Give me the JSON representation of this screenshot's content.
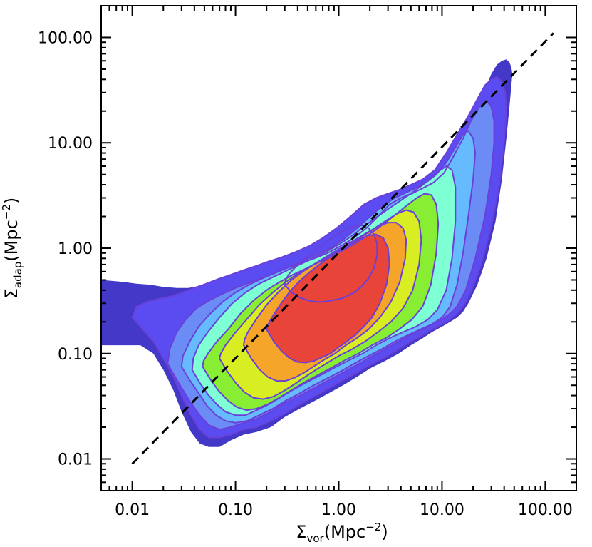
{
  "chart_data": {
    "type": "contour",
    "x_scale": "log",
    "y_scale": "log",
    "xlim": [
      0.005,
      200
    ],
    "ylim": [
      0.005,
      200
    ],
    "x_ticks": [
      0.01,
      0.1,
      1,
      10,
      100
    ],
    "x_tick_labels": [
      "0.01",
      "0.10",
      "1.00",
      "10.00",
      "100.00"
    ],
    "y_ticks": [
      0.01,
      0.1,
      1,
      10,
      100
    ],
    "y_tick_labels": [
      "0.01",
      "0.10",
      "1.00",
      "10.00",
      "100.00"
    ],
    "xlabel": {
      "symbol": "Σ",
      "subscript": "vor",
      "unit": "(Mpc",
      "exponent": "−2",
      "close": ")"
    },
    "ylabel": {
      "symbol": "Σ",
      "subscript": "adap",
      "unit": "(Mpc",
      "exponent": "−2",
      "close": ")"
    },
    "reference_line": {
      "style": "dashed",
      "color": "#000000",
      "x": [
        0.01,
        120
      ],
      "y": [
        0.009,
        110
      ]
    },
    "levels": [
      {
        "color": "#4338c8",
        "x": [
          0.005,
          0.008,
          0.012,
          0.016,
          0.02,
          0.025,
          0.03,
          0.037,
          0.045,
          0.055,
          0.07,
          0.09,
          0.12,
          0.16,
          0.22,
          0.3,
          0.42,
          0.6,
          0.8,
          1.1,
          1.5,
          2.0,
          2.8,
          3.8,
          5.0,
          6.5,
          8.0,
          10.0,
          12.0,
          14.0,
          16.0,
          18.0,
          22.0,
          27.0,
          33.0,
          38.0,
          42.0,
          45.0,
          47.0,
          48.0,
          47.0,
          45.0,
          42.0,
          38.0,
          34.0,
          30.0,
          27.0,
          24.0,
          20.0,
          17.0,
          14.0,
          11.0,
          9.0,
          7.0,
          5.5,
          4.2,
          3.3,
          2.6,
          2.0,
          1.5,
          1.1,
          0.8,
          0.6,
          0.45,
          0.34,
          0.26,
          0.2,
          0.15,
          0.11,
          0.08,
          0.06,
          0.045,
          0.035,
          0.027,
          0.02,
          0.015,
          0.011,
          0.008,
          0.005
        ],
        "y": [
          0.12,
          0.12,
          0.12,
          0.1,
          0.07,
          0.045,
          0.028,
          0.018,
          0.014,
          0.013,
          0.013,
          0.015,
          0.017,
          0.018,
          0.02,
          0.025,
          0.03,
          0.036,
          0.042,
          0.05,
          0.06,
          0.072,
          0.085,
          0.1,
          0.12,
          0.14,
          0.16,
          0.18,
          0.2,
          0.22,
          0.25,
          0.3,
          0.45,
          0.8,
          1.8,
          4.5,
          11.0,
          22.0,
          35.0,
          45.0,
          52.0,
          58.0,
          62.0,
          60.0,
          55.0,
          45.0,
          35.0,
          25.0,
          17.0,
          12.0,
          8.0,
          5.5,
          4.5,
          4.0,
          3.7,
          3.5,
          3.3,
          3.0,
          2.6,
          2.0,
          1.6,
          1.25,
          1.05,
          0.9,
          0.8,
          0.75,
          0.7,
          0.65,
          0.58,
          0.52,
          0.47,
          0.44,
          0.42,
          0.42,
          0.43,
          0.45,
          0.46,
          0.48,
          0.5
        ]
      },
      {
        "color": "#5a4cf0",
        "x": [
          0.01,
          0.012,
          0.016,
          0.02,
          0.025,
          0.03,
          0.037,
          0.045,
          0.055,
          0.07,
          0.09,
          0.12,
          0.16,
          0.22,
          0.3,
          0.42,
          0.6,
          0.8,
          1.1,
          1.5,
          2.0,
          2.8,
          3.8,
          5.0,
          6.5,
          8.0,
          10.0,
          12.0,
          14.0,
          16.0,
          19.0,
          24.0,
          30.0,
          36.0,
          40.0,
          42.0,
          41.0,
          38.0,
          34.0,
          30.0,
          26.0,
          22.0,
          18.0,
          14.0,
          11.0,
          8.5,
          6.5,
          5.0,
          3.9,
          3.0,
          2.3,
          1.75,
          1.3,
          0.95,
          0.7,
          0.52,
          0.38,
          0.28,
          0.21,
          0.16,
          0.12,
          0.09,
          0.068,
          0.052,
          0.04,
          0.031,
          0.024,
          0.018,
          0.014,
          0.011,
          0.01
        ],
        "y": [
          0.22,
          0.18,
          0.13,
          0.09,
          0.06,
          0.04,
          0.026,
          0.019,
          0.016,
          0.016,
          0.017,
          0.019,
          0.02,
          0.023,
          0.027,
          0.033,
          0.04,
          0.047,
          0.056,
          0.066,
          0.078,
          0.092,
          0.11,
          0.13,
          0.15,
          0.17,
          0.19,
          0.21,
          0.24,
          0.28,
          0.38,
          0.7,
          1.6,
          4.0,
          10.0,
          20.0,
          30.0,
          38.0,
          42.0,
          40.0,
          35.0,
          26.0,
          18.0,
          12.0,
          8.0,
          5.5,
          4.5,
          4.0,
          3.6,
          3.3,
          3.0,
          2.6,
          2.0,
          1.55,
          1.25,
          1.05,
          0.92,
          0.82,
          0.75,
          0.68,
          0.62,
          0.56,
          0.51,
          0.46,
          0.42,
          0.38,
          0.35,
          0.33,
          0.31,
          0.28,
          0.22
        ]
      },
      {
        "color": "#6b8cf4",
        "x": [
          0.022,
          0.026,
          0.031,
          0.037,
          0.045,
          0.055,
          0.07,
          0.09,
          0.12,
          0.16,
          0.22,
          0.3,
          0.42,
          0.6,
          0.8,
          1.1,
          1.5,
          2.0,
          2.8,
          3.8,
          5.0,
          6.5,
          8.0,
          10.0,
          12.0,
          14.0,
          17.0,
          21.0,
          26.0,
          30.0,
          32.0,
          32.0,
          30.0,
          27.0,
          23.0,
          19.0,
          16.0,
          13.0,
          10.5,
          8.3,
          6.5,
          5.1,
          4.0,
          3.1,
          2.4,
          1.85,
          1.4,
          1.05,
          0.78,
          0.58,
          0.43,
          0.32,
          0.24,
          0.18,
          0.135,
          0.1,
          0.075,
          0.056,
          0.042,
          0.033,
          0.027,
          0.023,
          0.022
        ],
        "y": [
          0.08,
          0.06,
          0.045,
          0.034,
          0.026,
          0.021,
          0.019,
          0.02,
          0.022,
          0.024,
          0.028,
          0.034,
          0.04,
          0.048,
          0.056,
          0.066,
          0.078,
          0.092,
          0.11,
          0.13,
          0.15,
          0.17,
          0.19,
          0.21,
          0.24,
          0.28,
          0.4,
          0.8,
          2.0,
          5.0,
          10.0,
          16.0,
          22.0,
          25.0,
          22.0,
          16.0,
          11.0,
          7.5,
          5.2,
          4.2,
          3.7,
          3.3,
          3.0,
          2.6,
          2.0,
          1.55,
          1.25,
          1.05,
          0.9,
          0.8,
          0.72,
          0.65,
          0.58,
          0.52,
          0.47,
          0.42,
          0.37,
          0.32,
          0.27,
          0.21,
          0.16,
          0.11,
          0.08
        ]
      },
      {
        "color": "#66bbff",
        "x": [
          0.03,
          0.036,
          0.044,
          0.053,
          0.065,
          0.08,
          0.1,
          0.13,
          0.17,
          0.23,
          0.31,
          0.42,
          0.57,
          0.77,
          1.05,
          1.4,
          1.9,
          2.6,
          3.5,
          4.7,
          6.2,
          8.0,
          10.0,
          12.0,
          14.0,
          16.0,
          18.0,
          20.0,
          21.0,
          20.0,
          18.0,
          16.0,
          13.5,
          11.0,
          8.8,
          7.0,
          5.5,
          4.3,
          3.3,
          2.5,
          1.9,
          1.45,
          1.1,
          0.83,
          0.62,
          0.46,
          0.34,
          0.25,
          0.185,
          0.135,
          0.1,
          0.075,
          0.057,
          0.044,
          0.036,
          0.031,
          0.03
        ],
        "y": [
          0.075,
          0.056,
          0.042,
          0.032,
          0.026,
          0.023,
          0.022,
          0.023,
          0.026,
          0.03,
          0.036,
          0.042,
          0.05,
          0.058,
          0.068,
          0.08,
          0.094,
          0.11,
          0.13,
          0.15,
          0.17,
          0.19,
          0.22,
          0.28,
          0.45,
          0.9,
          2.0,
          4.5,
          8.0,
          11.0,
          13.0,
          12.0,
          9.0,
          6.5,
          5.0,
          4.2,
          3.7,
          3.3,
          2.9,
          2.4,
          1.9,
          1.5,
          1.2,
          1.0,
          0.87,
          0.76,
          0.67,
          0.59,
          0.52,
          0.45,
          0.38,
          0.31,
          0.24,
          0.18,
          0.13,
          0.095,
          0.075
        ]
      },
      {
        "color": "#7fffd4",
        "x": [
          0.038,
          0.045,
          0.054,
          0.066,
          0.08,
          0.1,
          0.125,
          0.16,
          0.21,
          0.28,
          0.37,
          0.5,
          0.68,
          0.92,
          1.25,
          1.7,
          2.3,
          3.1,
          4.2,
          5.6,
          7.3,
          9.0,
          11.0,
          12.5,
          13.5,
          13.5,
          12.5,
          11.0,
          9.4,
          7.8,
          6.3,
          5.0,
          3.9,
          3.0,
          2.3,
          1.75,
          1.33,
          1.0,
          0.75,
          0.56,
          0.42,
          0.31,
          0.23,
          0.17,
          0.125,
          0.093,
          0.07,
          0.054,
          0.044,
          0.039,
          0.038
        ],
        "y": [
          0.07,
          0.053,
          0.041,
          0.033,
          0.028,
          0.026,
          0.026,
          0.029,
          0.033,
          0.039,
          0.046,
          0.054,
          0.063,
          0.074,
          0.086,
          0.1,
          0.12,
          0.14,
          0.16,
          0.18,
          0.21,
          0.26,
          0.4,
          0.8,
          1.8,
          3.8,
          5.5,
          6.0,
          5.4,
          4.6,
          3.9,
          3.3,
          2.8,
          2.35,
          1.95,
          1.6,
          1.3,
          1.08,
          0.92,
          0.8,
          0.7,
          0.61,
          0.53,
          0.46,
          0.38,
          0.3,
          0.22,
          0.16,
          0.12,
          0.09,
          0.07
        ]
      },
      {
        "color": "#88ee33",
        "x": [
          0.048,
          0.057,
          0.069,
          0.084,
          0.103,
          0.128,
          0.16,
          0.205,
          0.265,
          0.35,
          0.46,
          0.62,
          0.84,
          1.14,
          1.55,
          2.1,
          2.85,
          3.85,
          5.1,
          6.5,
          7.8,
          8.8,
          9.2,
          8.8,
          7.9,
          6.8,
          5.7,
          4.7,
          3.8,
          3.05,
          2.4,
          1.85,
          1.42,
          1.09,
          0.83,
          0.63,
          0.48,
          0.36,
          0.27,
          0.2,
          0.15,
          0.112,
          0.085,
          0.066,
          0.054,
          0.049,
          0.048
        ],
        "y": [
          0.075,
          0.057,
          0.044,
          0.036,
          0.031,
          0.029,
          0.03,
          0.033,
          0.038,
          0.045,
          0.053,
          0.062,
          0.073,
          0.086,
          0.1,
          0.12,
          0.14,
          0.17,
          0.21,
          0.28,
          0.45,
          0.9,
          1.7,
          2.6,
          3.2,
          3.3,
          3.0,
          2.6,
          2.2,
          1.85,
          1.55,
          1.3,
          1.1,
          0.95,
          0.83,
          0.73,
          0.64,
          0.56,
          0.48,
          0.4,
          0.32,
          0.24,
          0.17,
          0.13,
          0.1,
          0.085,
          0.075
        ]
      },
      {
        "color": "#d8ee22",
        "x": [
          0.07,
          0.083,
          0.1,
          0.122,
          0.15,
          0.186,
          0.232,
          0.292,
          0.37,
          0.47,
          0.6,
          0.78,
          1.02,
          1.35,
          1.8,
          2.4,
          3.2,
          4.2,
          5.2,
          6.0,
          6.3,
          6.0,
          5.3,
          4.5,
          3.75,
          3.05,
          2.45,
          1.95,
          1.53,
          1.19,
          0.92,
          0.71,
          0.54,
          0.41,
          0.31,
          0.23,
          0.17,
          0.128,
          0.098,
          0.08,
          0.072,
          0.07
        ],
        "y": [
          0.09,
          0.068,
          0.053,
          0.043,
          0.038,
          0.037,
          0.039,
          0.044,
          0.051,
          0.06,
          0.07,
          0.082,
          0.096,
          0.11,
          0.13,
          0.16,
          0.2,
          0.27,
          0.4,
          0.7,
          1.2,
          1.8,
          2.2,
          2.3,
          2.15,
          1.9,
          1.65,
          1.42,
          1.22,
          1.05,
          0.91,
          0.79,
          0.68,
          0.58,
          0.48,
          0.38,
          0.29,
          0.21,
          0.155,
          0.12,
          0.1,
          0.09
        ]
      },
      {
        "color": "#f5a52a",
        "x": [
          0.12,
          0.142,
          0.17,
          0.205,
          0.25,
          0.305,
          0.375,
          0.465,
          0.58,
          0.73,
          0.92,
          1.17,
          1.5,
          1.95,
          2.5,
          3.2,
          3.9,
          4.4,
          4.5,
          4.2,
          3.6,
          3.0,
          2.45,
          1.98,
          1.58,
          1.25,
          0.98,
          0.77,
          0.6,
          0.46,
          0.35,
          0.265,
          0.2,
          0.158,
          0.132,
          0.122,
          0.12
        ],
        "y": [
          0.12,
          0.09,
          0.071,
          0.06,
          0.055,
          0.055,
          0.059,
          0.066,
          0.076,
          0.088,
          0.1,
          0.12,
          0.14,
          0.17,
          0.22,
          0.31,
          0.48,
          0.8,
          1.2,
          1.55,
          1.75,
          1.75,
          1.62,
          1.45,
          1.27,
          1.11,
          0.97,
          0.84,
          0.72,
          0.61,
          0.5,
          0.39,
          0.29,
          0.21,
          0.16,
          0.135,
          0.12
        ]
      },
      {
        "color": "#e8443a",
        "x": [
          0.2,
          0.235,
          0.28,
          0.335,
          0.4,
          0.48,
          0.575,
          0.69,
          0.83,
          1.0,
          1.2,
          1.45,
          1.75,
          2.1,
          2.5,
          2.9,
          3.1,
          3.0,
          2.7,
          2.3,
          1.92,
          1.58,
          1.29,
          1.04,
          0.83,
          0.66,
          0.52,
          0.41,
          0.33,
          0.27,
          0.225,
          0.205,
          0.2
        ],
        "y": [
          0.17,
          0.13,
          0.105,
          0.09,
          0.083,
          0.082,
          0.085,
          0.092,
          0.1,
          0.115,
          0.13,
          0.15,
          0.18,
          0.22,
          0.3,
          0.45,
          0.7,
          1.0,
          1.25,
          1.35,
          1.32,
          1.22,
          1.09,
          0.96,
          0.83,
          0.71,
          0.59,
          0.48,
          0.38,
          0.29,
          0.22,
          0.185,
          0.17
        ]
      }
    ],
    "contour_outlines": [
      {
        "color": "#6a40d8",
        "x": [
          0.3,
          0.35,
          0.42,
          0.5,
          0.6,
          0.72,
          0.86,
          1.02,
          1.2,
          1.4,
          1.65,
          1.95,
          2.2,
          2.35,
          2.35,
          2.2,
          1.95,
          1.68,
          1.42,
          1.2,
          1.0,
          0.83,
          0.68,
          0.56,
          0.46,
          0.38,
          0.33,
          0.305,
          0.3
        ],
        "y": [
          0.45,
          0.38,
          0.34,
          0.32,
          0.31,
          0.31,
          0.32,
          0.33,
          0.35,
          0.38,
          0.43,
          0.52,
          0.65,
          0.85,
          1.1,
          1.35,
          1.55,
          1.65,
          1.62,
          1.52,
          1.38,
          1.22,
          1.06,
          0.91,
          0.78,
          0.66,
          0.57,
          0.5,
          0.45
        ]
      }
    ]
  }
}
